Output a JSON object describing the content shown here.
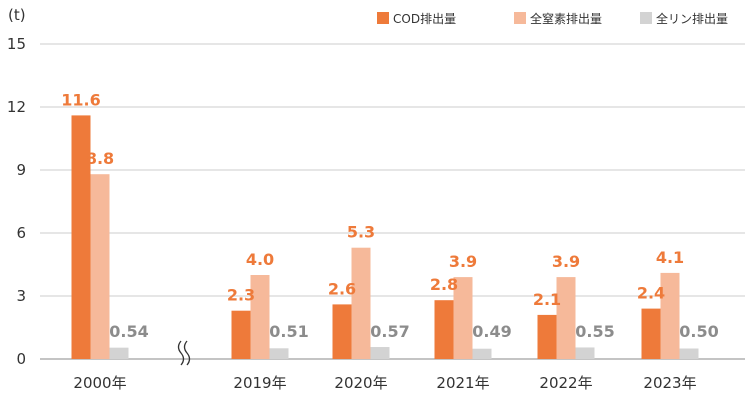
{
  "chart_data": {
    "type": "bar",
    "unit_label": "(t)",
    "categories": [
      "2000年",
      "2019年",
      "2020年",
      "2021年",
      "2022年",
      "2023年"
    ],
    "axis_break_after_category": "2000年",
    "ylim": [
      0,
      15
    ],
    "yticks": [
      0,
      3,
      6,
      9,
      12,
      15
    ],
    "grid": true,
    "legend_position": "top-right",
    "series": [
      {
        "name": "COD排出量",
        "color": "#ee7a3a",
        "label_color": "#ee7a3a",
        "values": [
          11.6,
          2.3,
          2.6,
          2.8,
          2.1,
          2.4
        ],
        "labels": [
          "11.6",
          "2.3",
          "2.6",
          "2.8",
          "2.1",
          "2.4"
        ]
      },
      {
        "name": "全窒素排出量",
        "color": "#f6b99a",
        "label_color": "#ee7a3a",
        "values": [
          8.8,
          4.0,
          5.3,
          3.9,
          3.9,
          4.1
        ],
        "labels": [
          "8.8",
          "4.0",
          "5.3",
          "3.9",
          "3.9",
          "4.1"
        ]
      },
      {
        "name": "全リン排出量",
        "color": "#d3d3d3",
        "label_color": "#8c8c8c",
        "values": [
          0.54,
          0.51,
          0.57,
          0.49,
          0.55,
          0.5
        ],
        "labels": [
          "0.54",
          "0.51",
          "0.57",
          "0.49",
          "0.55",
          "0.50"
        ]
      }
    ]
  }
}
